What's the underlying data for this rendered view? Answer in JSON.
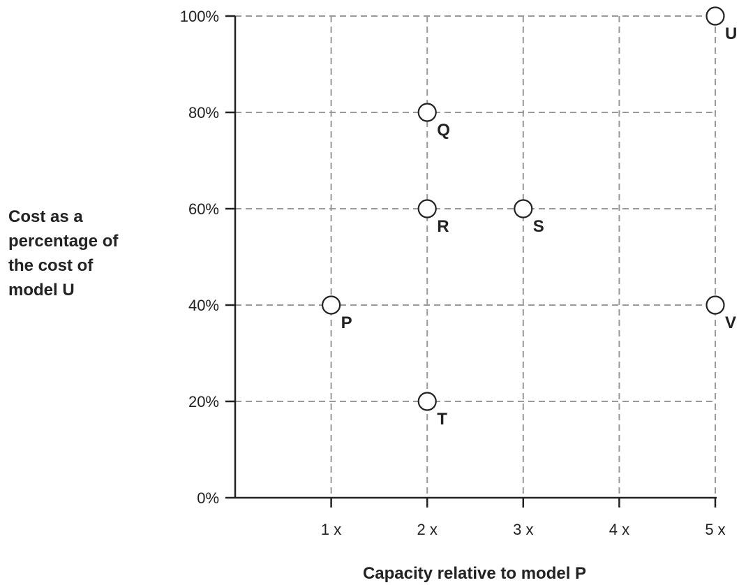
{
  "chart_data": {
    "type": "scatter",
    "title": "",
    "xlabel": "Capacity relative to model P",
    "ylabel_lines": [
      "Cost as a",
      "percentage of",
      "the cost of",
      "model U"
    ],
    "x_ticks": [
      {
        "value": 1,
        "label": "1 x"
      },
      {
        "value": 2,
        "label": "2 x"
      },
      {
        "value": 3,
        "label": "3 x"
      },
      {
        "value": 4,
        "label": "4 x"
      },
      {
        "value": 5,
        "label": "5 x"
      }
    ],
    "y_ticks": [
      {
        "value": 0,
        "label": "0%"
      },
      {
        "value": 20,
        "label": "20%"
      },
      {
        "value": 40,
        "label": "40%"
      },
      {
        "value": 60,
        "label": "60%"
      },
      {
        "value": 80,
        "label": "80%"
      },
      {
        "value": 100,
        "label": "100%"
      }
    ],
    "xlim": [
      0,
      5
    ],
    "ylim": [
      0,
      100
    ],
    "grid": true,
    "points": [
      {
        "label": "U",
        "x": 5,
        "y": 100
      },
      {
        "label": "Q",
        "x": 2,
        "y": 80
      },
      {
        "label": "R",
        "x": 2,
        "y": 60
      },
      {
        "label": "S",
        "x": 3,
        "y": 60
      },
      {
        "label": "P",
        "x": 1,
        "y": 40
      },
      {
        "label": "V",
        "x": 5,
        "y": 40
      },
      {
        "label": "T",
        "x": 2,
        "y": 20
      }
    ],
    "colors": {
      "axis": "#222222",
      "grid": "#999999",
      "marker_fill": "#ffffff",
      "marker_stroke": "#222222"
    }
  }
}
